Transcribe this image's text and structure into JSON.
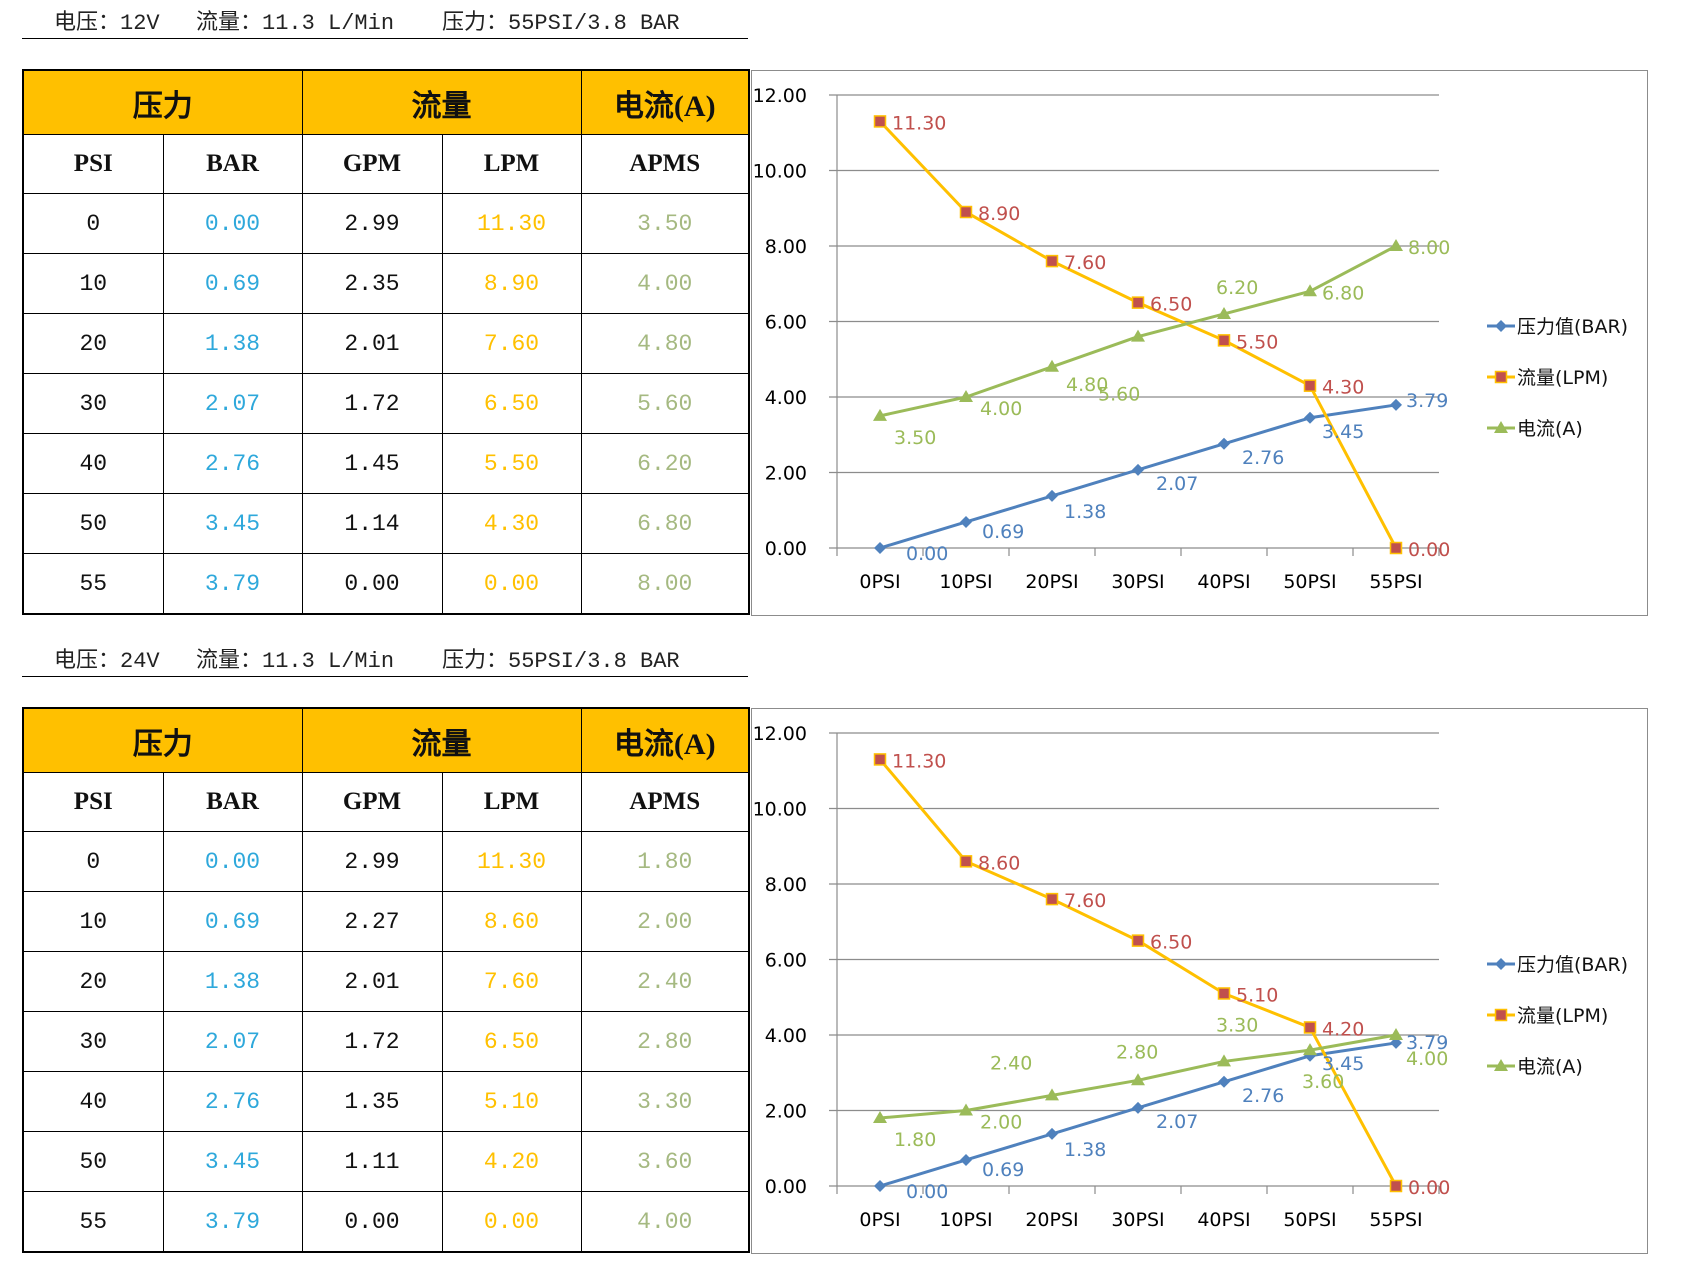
{
  "sections": [
    {
      "caption": {
        "voltage": "电压：12V",
        "flow": "流量：11.3 L/Min",
        "pressure": "压力：55PSI/3.8 BAR"
      },
      "table": {
        "group_headers": [
          "压力",
          "流量",
          "电流(A)"
        ],
        "column_headers": [
          "PSI",
          "BAR",
          "GPM",
          "LPM",
          "APMS"
        ],
        "rows": [
          [
            "0",
            "0.00",
            "2.99",
            "11.30",
            "3.50"
          ],
          [
            "10",
            "0.69",
            "2.35",
            "8.90",
            "4.00"
          ],
          [
            "20",
            "1.38",
            "2.01",
            "7.60",
            "4.80"
          ],
          [
            "30",
            "2.07",
            "1.72",
            "6.50",
            "5.60"
          ],
          [
            "40",
            "2.76",
            "1.45",
            "5.50",
            "6.20"
          ],
          [
            "50",
            "3.45",
            "1.14",
            "4.30",
            "6.80"
          ],
          [
            "55",
            "3.79",
            "0.00",
            "0.00",
            "8.00"
          ]
        ]
      }
    },
    {
      "caption": {
        "voltage": "电压：24V",
        "flow": "流量：11.3 L/Min",
        "pressure": "压力：55PSI/3.8 BAR"
      },
      "table": {
        "group_headers": [
          "压力",
          "流量",
          "电流(A)"
        ],
        "column_headers": [
          "PSI",
          "BAR",
          "GPM",
          "LPM",
          "APMS"
        ],
        "rows": [
          [
            "0",
            "0.00",
            "2.99",
            "11.30",
            "1.80"
          ],
          [
            "10",
            "0.69",
            "2.27",
            "8.60",
            "2.00"
          ],
          [
            "20",
            "1.38",
            "2.01",
            "7.60",
            "2.40"
          ],
          [
            "30",
            "2.07",
            "1.72",
            "6.50",
            "2.80"
          ],
          [
            "40",
            "2.76",
            "1.35",
            "5.10",
            "3.30"
          ],
          [
            "50",
            "3.45",
            "1.11",
            "4.20",
            "3.60"
          ],
          [
            "55",
            "3.79",
            "0.00",
            "0.00",
            "4.00"
          ]
        ]
      }
    }
  ],
  "colors": {
    "header_fill": "#FFC000",
    "bar_text": "#2EA8DB",
    "lpm_text": "#FFC000",
    "apms_text": "#A5B981",
    "pressure_line": "#4F81BD",
    "flow_line": "#FFC000",
    "flow_marker": "#C0504D",
    "current_line": "#9BBB59"
  },
  "chart_data": [
    {
      "type": "line",
      "title": "",
      "xlabel": "",
      "ylabel": "",
      "categories": [
        "0PSI",
        "10PSI",
        "20PSI",
        "30PSI",
        "40PSI",
        "50PSI",
        "55PSI"
      ],
      "ylim": [
        0,
        12
      ],
      "yticks": [
        "0.00",
        "2.00",
        "4.00",
        "6.00",
        "8.00",
        "10.00",
        "12.00"
      ],
      "grid": true,
      "legend": "right",
      "series": [
        {
          "name": "压力值(BAR)",
          "marker": "diamond",
          "values": [
            0.0,
            0.69,
            1.38,
            2.07,
            2.76,
            3.45,
            3.79
          ],
          "labels": [
            "0.00",
            "0.69",
            "1.38",
            "2.07",
            "2.76",
            "3.45",
            "3.79"
          ]
        },
        {
          "name": "流量(LPM)",
          "marker": "square",
          "values": [
            11.3,
            8.9,
            7.6,
            6.5,
            5.5,
            4.3,
            0.0
          ],
          "labels": [
            "11.30",
            "8.90",
            "7.60",
            "6.50",
            "5.50",
            "4.30",
            "0.00"
          ]
        },
        {
          "name": "电流(A)",
          "marker": "triangle",
          "values": [
            3.5,
            4.0,
            4.8,
            5.6,
            6.2,
            6.8,
            8.0
          ],
          "labels": [
            "3.50",
            "4.00",
            "4.80",
            "5.60",
            "6.20",
            "6.80",
            "8.00"
          ]
        }
      ]
    },
    {
      "type": "line",
      "title": "",
      "xlabel": "",
      "ylabel": "",
      "categories": [
        "0PSI",
        "10PSI",
        "20PSI",
        "30PSI",
        "40PSI",
        "50PSI",
        "55PSI"
      ],
      "ylim": [
        0,
        12
      ],
      "yticks": [
        "0.00",
        "2.00",
        "4.00",
        "6.00",
        "8.00",
        "10.00",
        "12.00"
      ],
      "grid": true,
      "legend": "right",
      "series": [
        {
          "name": "压力值(BAR)",
          "marker": "diamond",
          "values": [
            0.0,
            0.69,
            1.38,
            2.07,
            2.76,
            3.45,
            3.79
          ],
          "labels": [
            "0.00",
            "0.69",
            "1.38",
            "2.07",
            "2.76",
            "3.45",
            "3.79"
          ]
        },
        {
          "name": "流量(LPM)",
          "marker": "square",
          "values": [
            11.3,
            8.6,
            7.6,
            6.5,
            5.1,
            4.2,
            0.0
          ],
          "labels": [
            "11.30",
            "8.60",
            "7.60",
            "6.50",
            "5.10",
            "4.20",
            "0.00"
          ]
        },
        {
          "name": "电流(A)",
          "marker": "triangle",
          "values": [
            1.8,
            2.0,
            2.4,
            2.8,
            3.3,
            3.6,
            4.0
          ],
          "labels": [
            "1.80",
            "2.00",
            "2.40",
            "2.80",
            "3.30",
            "3.60",
            "4.00"
          ]
        }
      ]
    }
  ]
}
